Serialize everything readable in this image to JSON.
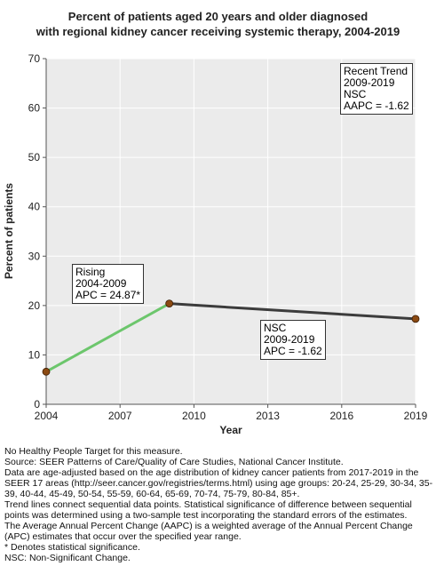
{
  "chart_data": {
    "type": "line",
    "title_lines": [
      "Percent of patients aged 20 years and older diagnosed",
      "with regional kidney cancer receiving systemic therapy, 2004-2019"
    ],
    "xlabel": "Year",
    "ylabel": "Percent of patients",
    "xlim": [
      2004,
      2019
    ],
    "ylim": [
      0,
      70
    ],
    "x_ticks": [
      "2004",
      "2007",
      "2010",
      "2013",
      "2016",
      "2019"
    ],
    "y_ticks": [
      "0",
      "10",
      "20",
      "30",
      "40",
      "50",
      "60",
      "70"
    ],
    "grid": true,
    "points": [
      {
        "x": 2004,
        "y": 6.6
      },
      {
        "x": 2009,
        "y": 20.4
      },
      {
        "x": 2019,
        "y": 17.3
      }
    ],
    "segments": [
      {
        "from": 2004,
        "to": 2009,
        "color": "#6cc66c",
        "label_lines": [
          "Rising",
          "2004-2009",
          "APC = 24.87*"
        ]
      },
      {
        "from": 2009,
        "to": 2019,
        "color": "#3c3c3c",
        "label_lines": [
          "NSC",
          "2009-2019",
          "APC = -1.62"
        ]
      }
    ],
    "recent_trend_lines": [
      "Recent Trend",
      "2009-2019",
      "NSC",
      "AAPC = -1.62"
    ],
    "colors": {
      "point_fill": "#8b4a12",
      "plot_bg": "#ebebeb",
      "grid": "#ffffff"
    }
  },
  "notes": [
    "No Healthy People Target for this measure.",
    "Source: SEER Patterns of Care/Quality of Care Studies, National Cancer Institute.",
    "Data are age-adjusted based on the age distribution of kidney cancer patients from 2017-2019 in the SEER 17 areas (http://seer.cancer.gov/registries/terms.html) using age groups: 20-24, 25-29, 30-34, 35-39, 40-44, 45-49, 50-54, 55-59, 60-64, 65-69, 70-74, 75-79, 80-84, 85+.",
    "Trend lines connect sequential data points. Statistical significance of difference between sequential points was determined using a two-sample test incorporating the standard errors of the estimates.",
    "The Average Annual Percent Change (AAPC) is a weighted average of the Annual Percent Change (APC) estimates that occur over the specified year range.",
    "* Denotes statistical significance.",
    "NSC: Non-Significant Change."
  ]
}
